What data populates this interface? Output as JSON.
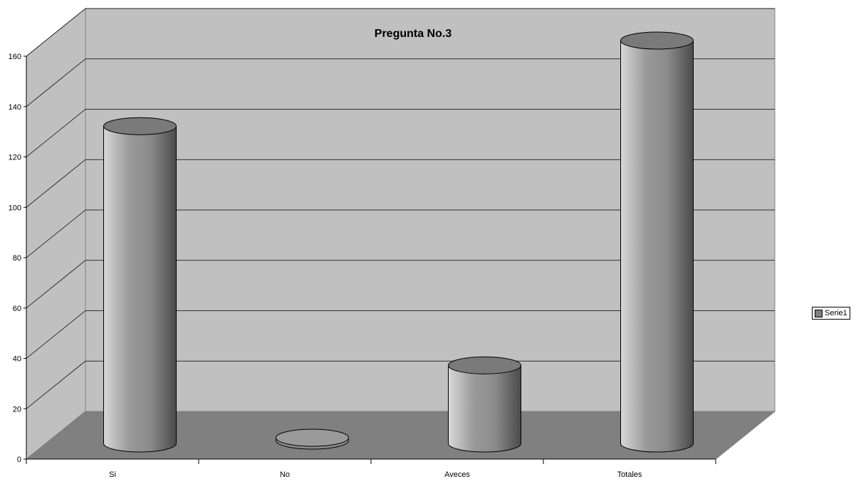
{
  "chart_data": {
    "type": "bar",
    "title": "Pregunta No.3",
    "categories": [
      "Si",
      "No",
      "Aveces",
      "Totales"
    ],
    "series": [
      {
        "name": "Serie1",
        "values": [
          126,
          0,
          31,
          160
        ]
      }
    ],
    "ylim": [
      0,
      160
    ],
    "yticks": [
      0,
      20,
      40,
      60,
      80,
      100,
      120,
      140,
      160
    ],
    "grid": true,
    "legend_position": "right",
    "style": "3d-cylinder",
    "colors": {
      "wall": "#c0c0c0",
      "floor": "#808080",
      "bar": "#8c8c8c",
      "grid": "#000000"
    }
  }
}
